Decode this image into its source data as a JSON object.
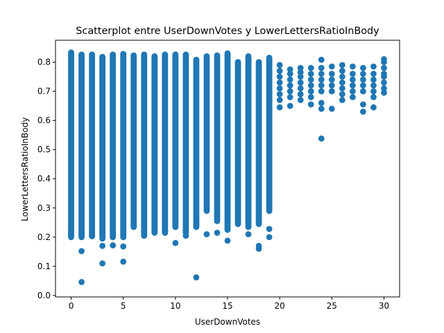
{
  "chart_data": {
    "type": "scatter",
    "title": "Scatterplot entre UserDownVotes y LowerLettersRatioInBody",
    "xlabel": "UserDownVotes",
    "ylabel": "LowerLettersRatioInBody",
    "xlim": [
      -1.5,
      31.5
    ],
    "ylim": [
      -0.005,
      0.875
    ],
    "xticks": [
      0,
      5,
      10,
      15,
      20,
      25,
      30
    ],
    "yticks": [
      0.0,
      0.1,
      0.2,
      0.3,
      0.4,
      0.5,
      0.6,
      0.7,
      0.8
    ],
    "xtick_labels": [
      "0",
      "5",
      "10",
      "15",
      "20",
      "25",
      "30"
    ],
    "ytick_labels": [
      "0.0",
      "0.1",
      "0.2",
      "0.3",
      "0.4",
      "0.5",
      "0.6",
      "0.7",
      "0.8"
    ],
    "grid": false,
    "marker_color": "#1f77b4",
    "column_ranges": [
      {
        "x": 0,
        "ymin": 0.2,
        "ymax": 0.833
      },
      {
        "x": 1,
        "ymin": 0.2,
        "ymax": 0.826
      },
      {
        "x": 2,
        "ymin": 0.205,
        "ymax": 0.826
      },
      {
        "x": 3,
        "ymin": 0.2,
        "ymax": 0.818
      },
      {
        "x": 4,
        "ymin": 0.2,
        "ymax": 0.826
      },
      {
        "x": 5,
        "ymin": 0.2,
        "ymax": 0.828
      },
      {
        "x": 6,
        "ymin": 0.235,
        "ymax": 0.823
      },
      {
        "x": 7,
        "ymin": 0.205,
        "ymax": 0.826
      },
      {
        "x": 8,
        "ymin": 0.215,
        "ymax": 0.82
      },
      {
        "x": 9,
        "ymin": 0.215,
        "ymax": 0.826
      },
      {
        "x": 10,
        "ymin": 0.235,
        "ymax": 0.826
      },
      {
        "x": 11,
        "ymin": 0.215,
        "ymax": 0.826
      },
      {
        "x": 12,
        "ymin": 0.235,
        "ymax": 0.808
      },
      {
        "x": 13,
        "ymin": 0.29,
        "ymax": 0.82
      },
      {
        "x": 14,
        "ymin": 0.255,
        "ymax": 0.823
      },
      {
        "x": 15,
        "ymin": 0.225,
        "ymax": 0.83
      },
      {
        "x": 16,
        "ymin": 0.245,
        "ymax": 0.8
      },
      {
        "x": 17,
        "ymin": 0.235,
        "ymax": 0.82
      },
      {
        "x": 18,
        "ymin": 0.245,
        "ymax": 0.8
      },
      {
        "x": 19,
        "ymin": 0.29,
        "ymax": 0.815
      }
    ],
    "points": [
      {
        "x": 0,
        "y": 0.203
      },
      {
        "x": 0,
        "y": 0.22
      },
      {
        "x": 1,
        "y": 0.152
      },
      {
        "x": 1,
        "y": 0.046
      },
      {
        "x": 1,
        "y": 0.208
      },
      {
        "x": 2,
        "y": 0.203
      },
      {
        "x": 3,
        "y": 0.11
      },
      {
        "x": 3,
        "y": 0.17
      },
      {
        "x": 3,
        "y": 0.195
      },
      {
        "x": 4,
        "y": 0.172
      },
      {
        "x": 4,
        "y": 0.2
      },
      {
        "x": 5,
        "y": 0.116
      },
      {
        "x": 5,
        "y": 0.168
      },
      {
        "x": 5,
        "y": 0.2
      },
      {
        "x": 10,
        "y": 0.18
      },
      {
        "x": 11,
        "y": 0.205
      },
      {
        "x": 12,
        "y": 0.062
      },
      {
        "x": 12,
        "y": 0.245
      },
      {
        "x": 13,
        "y": 0.21
      },
      {
        "x": 14,
        "y": 0.215
      },
      {
        "x": 15,
        "y": 0.188
      },
      {
        "x": 17,
        "y": 0.21
      },
      {
        "x": 18,
        "y": 0.16
      },
      {
        "x": 18,
        "y": 0.17
      },
      {
        "x": 19,
        "y": 0.2
      },
      {
        "x": 19,
        "y": 0.228
      },
      {
        "x": 20,
        "y": 0.645
      },
      {
        "x": 20,
        "y": 0.67
      },
      {
        "x": 20,
        "y": 0.69
      },
      {
        "x": 20,
        "y": 0.71
      },
      {
        "x": 20,
        "y": 0.73
      },
      {
        "x": 20,
        "y": 0.75
      },
      {
        "x": 20,
        "y": 0.77
      },
      {
        "x": 20,
        "y": 0.79
      },
      {
        "x": 21,
        "y": 0.65
      },
      {
        "x": 21,
        "y": 0.68
      },
      {
        "x": 21,
        "y": 0.7
      },
      {
        "x": 21,
        "y": 0.72
      },
      {
        "x": 21,
        "y": 0.74
      },
      {
        "x": 21,
        "y": 0.76
      },
      {
        "x": 21,
        "y": 0.775
      },
      {
        "x": 22,
        "y": 0.67
      },
      {
        "x": 22,
        "y": 0.69
      },
      {
        "x": 22,
        "y": 0.71
      },
      {
        "x": 22,
        "y": 0.73
      },
      {
        "x": 22,
        "y": 0.75
      },
      {
        "x": 22,
        "y": 0.765
      },
      {
        "x": 22,
        "y": 0.78
      },
      {
        "x": 23,
        "y": 0.655
      },
      {
        "x": 23,
        "y": 0.68
      },
      {
        "x": 23,
        "y": 0.7
      },
      {
        "x": 23,
        "y": 0.72
      },
      {
        "x": 23,
        "y": 0.74
      },
      {
        "x": 23,
        "y": 0.76
      },
      {
        "x": 23,
        "y": 0.78
      },
      {
        "x": 24,
        "y": 0.538
      },
      {
        "x": 24,
        "y": 0.64
      },
      {
        "x": 24,
        "y": 0.66
      },
      {
        "x": 24,
        "y": 0.7
      },
      {
        "x": 24,
        "y": 0.72
      },
      {
        "x": 24,
        "y": 0.74
      },
      {
        "x": 24,
        "y": 0.76
      },
      {
        "x": 24,
        "y": 0.78
      },
      {
        "x": 24,
        "y": 0.808
      },
      {
        "x": 25,
        "y": 0.64
      },
      {
        "x": 25,
        "y": 0.7
      },
      {
        "x": 25,
        "y": 0.72
      },
      {
        "x": 25,
        "y": 0.74
      },
      {
        "x": 25,
        "y": 0.76
      },
      {
        "x": 25,
        "y": 0.785
      },
      {
        "x": 26,
        "y": 0.67
      },
      {
        "x": 26,
        "y": 0.69
      },
      {
        "x": 26,
        "y": 0.71
      },
      {
        "x": 26,
        "y": 0.73
      },
      {
        "x": 26,
        "y": 0.75
      },
      {
        "x": 26,
        "y": 0.77
      },
      {
        "x": 26,
        "y": 0.79
      },
      {
        "x": 27,
        "y": 0.68
      },
      {
        "x": 27,
        "y": 0.7
      },
      {
        "x": 27,
        "y": 0.72
      },
      {
        "x": 27,
        "y": 0.74
      },
      {
        "x": 27,
        "y": 0.76
      },
      {
        "x": 27,
        "y": 0.785
      },
      {
        "x": 28,
        "y": 0.63
      },
      {
        "x": 28,
        "y": 0.655
      },
      {
        "x": 28,
        "y": 0.7
      },
      {
        "x": 28,
        "y": 0.72
      },
      {
        "x": 28,
        "y": 0.74
      },
      {
        "x": 28,
        "y": 0.76
      },
      {
        "x": 28,
        "y": 0.78
      },
      {
        "x": 29,
        "y": 0.645
      },
      {
        "x": 29,
        "y": 0.68
      },
      {
        "x": 29,
        "y": 0.7
      },
      {
        "x": 29,
        "y": 0.72
      },
      {
        "x": 29,
        "y": 0.74
      },
      {
        "x": 29,
        "y": 0.76
      },
      {
        "x": 29,
        "y": 0.785
      },
      {
        "x": 30,
        "y": 0.695
      },
      {
        "x": 30,
        "y": 0.71
      },
      {
        "x": 30,
        "y": 0.73
      },
      {
        "x": 30,
        "y": 0.75
      },
      {
        "x": 30,
        "y": 0.76
      },
      {
        "x": 30,
        "y": 0.78
      },
      {
        "x": 30,
        "y": 0.8
      },
      {
        "x": 30,
        "y": 0.81
      }
    ]
  }
}
